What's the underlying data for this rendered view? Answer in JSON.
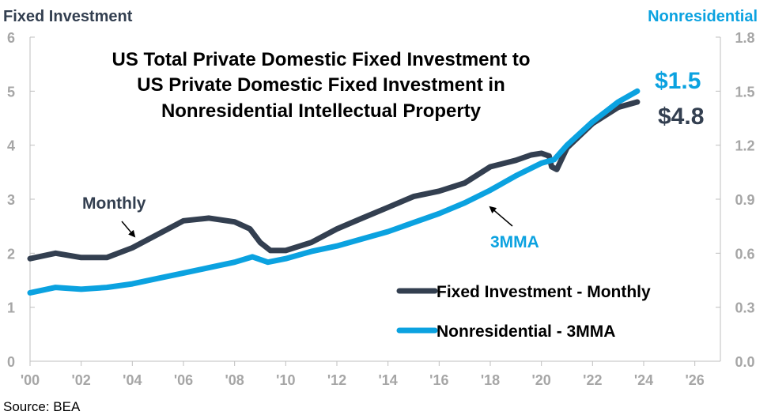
{
  "chart_data": {
    "type": "line",
    "title_lines": [
      "US Total Private Domestic Fixed Investment to",
      "US Private Domestic Fixed Investment in",
      "Nonresidential Intellectual Property"
    ],
    "left_axis_title": "Fixed Investment",
    "right_axis_title": "Nonresidential",
    "x_tick_labels": [
      "'00",
      "'02",
      "'04",
      "'06",
      "'08",
      "'10",
      "'12",
      "'14",
      "'16",
      "'18",
      "'20",
      "'22",
      "'24",
      "'26"
    ],
    "x_range": [
      2000,
      2027
    ],
    "left_ylim": [
      0,
      6
    ],
    "left_ticks": [
      "0",
      "1",
      "2",
      "3",
      "4",
      "5",
      "6"
    ],
    "right_ylim": [
      0,
      1.8
    ],
    "right_ticks": [
      "0.0",
      "0.3",
      "0.6",
      "0.9",
      "1.2",
      "1.5",
      "1.8"
    ],
    "series": [
      {
        "name": "Fixed Investment - Monthly",
        "axis": "left",
        "color": "#333f50",
        "points": [
          [
            2000,
            1.9
          ],
          [
            2001,
            2.0
          ],
          [
            2002,
            1.92
          ],
          [
            2003,
            1.92
          ],
          [
            2004,
            2.1
          ],
          [
            2005,
            2.35
          ],
          [
            2006,
            2.6
          ],
          [
            2007,
            2.65
          ],
          [
            2008,
            2.58
          ],
          [
            2008.6,
            2.45
          ],
          [
            2009,
            2.2
          ],
          [
            2009.4,
            2.05
          ],
          [
            2010,
            2.05
          ],
          [
            2011,
            2.2
          ],
          [
            2012,
            2.45
          ],
          [
            2013,
            2.65
          ],
          [
            2014,
            2.85
          ],
          [
            2015,
            3.05
          ],
          [
            2016,
            3.15
          ],
          [
            2017,
            3.3
          ],
          [
            2018,
            3.6
          ],
          [
            2019,
            3.72
          ],
          [
            2019.6,
            3.82
          ],
          [
            2020,
            3.85
          ],
          [
            2020.3,
            3.8
          ],
          [
            2020.4,
            3.6
          ],
          [
            2020.6,
            3.55
          ],
          [
            2021,
            3.95
          ],
          [
            2022,
            4.4
          ],
          [
            2023,
            4.7
          ],
          [
            2023.75,
            4.8
          ]
        ]
      },
      {
        "name": "Nonresidential - 3MMA",
        "axis": "right",
        "color": "#0ba2e0",
        "points": [
          [
            2000,
            0.38
          ],
          [
            2001,
            0.41
          ],
          [
            2002,
            0.4
          ],
          [
            2003,
            0.41
          ],
          [
            2004,
            0.43
          ],
          [
            2005,
            0.46
          ],
          [
            2006,
            0.49
          ],
          [
            2007,
            0.52
          ],
          [
            2008,
            0.55
          ],
          [
            2008.7,
            0.58
          ],
          [
            2009.3,
            0.55
          ],
          [
            2010,
            0.57
          ],
          [
            2011,
            0.61
          ],
          [
            2012,
            0.64
          ],
          [
            2013,
            0.68
          ],
          [
            2014,
            0.72
          ],
          [
            2015,
            0.77
          ],
          [
            2016,
            0.82
          ],
          [
            2017,
            0.88
          ],
          [
            2018,
            0.95
          ],
          [
            2019,
            1.03
          ],
          [
            2020,
            1.1
          ],
          [
            2020.5,
            1.12
          ],
          [
            2021,
            1.2
          ],
          [
            2022,
            1.33
          ],
          [
            2023,
            1.44
          ],
          [
            2023.75,
            1.5
          ]
        ]
      }
    ],
    "end_labels": [
      {
        "series": "Nonresidential - 3MMA",
        "text": "$1.5",
        "color": "#0ba2e0"
      },
      {
        "series": "Fixed Investment - Monthly",
        "text": "$4.8",
        "color": "#333f50"
      }
    ],
    "annotations": [
      {
        "text": "Monthly",
        "color": "#333f50"
      },
      {
        "text": "3MMA",
        "color": "#0ba2e0"
      }
    ],
    "legend": [
      {
        "label": "Fixed Investment - Monthly",
        "color": "#333f50"
      },
      {
        "label": "Nonresidential - 3MMA",
        "color": "#0ba2e0"
      }
    ],
    "source": "Source:  BEA",
    "colors": {
      "left_axis_title": "#333f50",
      "right_axis_title": "#0ba2e0",
      "axis_line": "#bfbfbf",
      "tick_text": "#a6a6a6"
    }
  }
}
